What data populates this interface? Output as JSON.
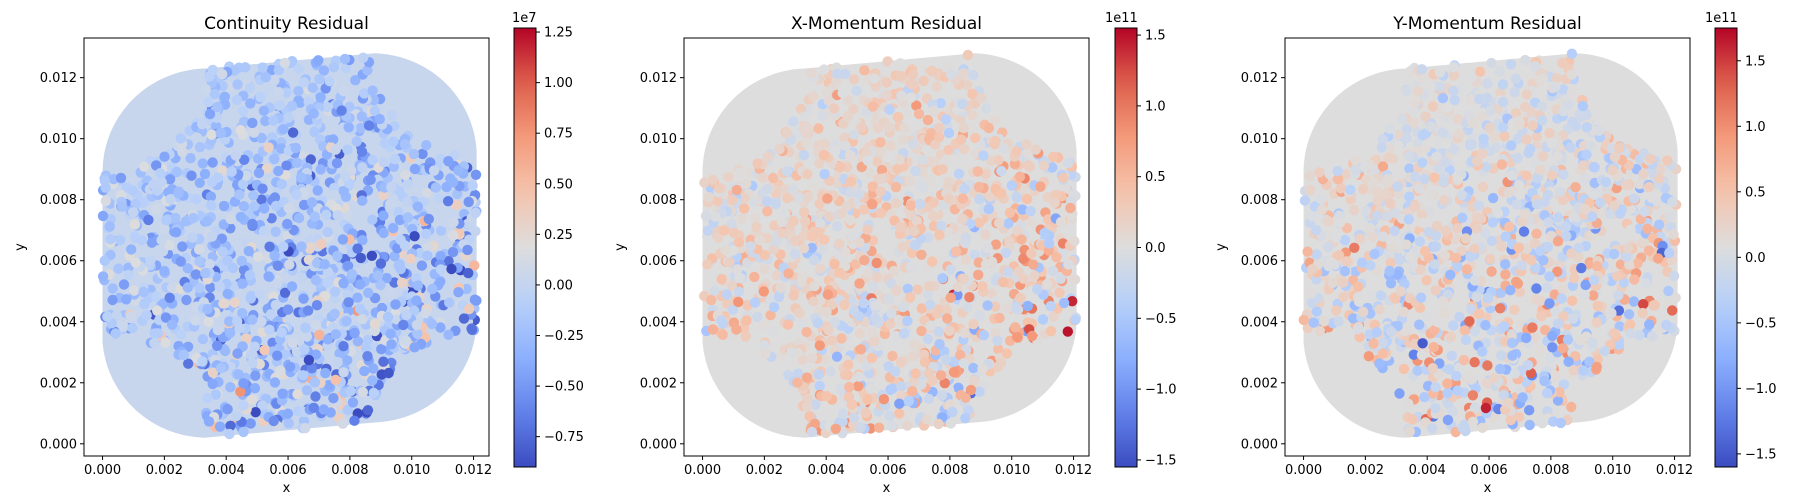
{
  "chart_data": [
    {
      "type": "scatter",
      "title": "Continuity Residual",
      "xlabel": "x",
      "ylabel": "y",
      "xlim": [
        -0.0006,
        0.0125
      ],
      "ylim": [
        -0.0004,
        0.0133
      ],
      "xticks": [
        "0.000",
        "0.002",
        "0.004",
        "0.006",
        "0.008",
        "0.010",
        "0.012"
      ],
      "yticks": [
        "0.000",
        "0.002",
        "0.004",
        "0.006",
        "0.008",
        "0.010",
        "0.012"
      ],
      "colormap": "coolwarm",
      "colorbar": {
        "range": [
          -9000000.0,
          12700000.0
        ],
        "offset_label": "1e7",
        "ticks": [
          -0.75,
          -0.5,
          -0.25,
          0.0,
          0.25,
          0.5,
          0.75,
          1.0,
          1.25
        ],
        "tick_labels": [
          "−0.75",
          "−0.50",
          "−0.25",
          "0.00",
          "0.25",
          "0.50",
          "0.75",
          "1.00",
          "1.25"
        ],
        "tick_scale": 10000000.0
      },
      "grid": false,
      "seed": 7
    },
    {
      "type": "scatter",
      "title": "X-Momentum Residual",
      "xlabel": "x",
      "ylabel": "y",
      "xlim": [
        -0.0006,
        0.0125
      ],
      "ylim": [
        -0.0004,
        0.0133
      ],
      "xticks": [
        "0.000",
        "0.002",
        "0.004",
        "0.006",
        "0.008",
        "0.010",
        "0.012"
      ],
      "yticks": [
        "0.000",
        "0.002",
        "0.004",
        "0.006",
        "0.008",
        "0.010",
        "0.012"
      ],
      "colormap": "coolwarm",
      "colorbar": {
        "range": [
          -155000000000.0,
          155000000000.0
        ],
        "offset_label": "1e11",
        "ticks": [
          -1.5,
          -1.0,
          -0.5,
          0.0,
          0.5,
          1.0,
          1.5
        ],
        "tick_labels": [
          "−1.5",
          "−1.0",
          "−0.5",
          "0.0",
          "0.5",
          "1.0",
          "1.5"
        ],
        "tick_scale": 100000000000.0
      },
      "grid": false,
      "seed": 13
    },
    {
      "type": "scatter",
      "title": "Y-Momentum Residual",
      "xlabel": "x",
      "ylabel": "y",
      "xlim": [
        -0.0006,
        0.0125
      ],
      "ylim": [
        -0.0004,
        0.0133
      ],
      "xticks": [
        "0.000",
        "0.002",
        "0.004",
        "0.006",
        "0.008",
        "0.010",
        "0.012"
      ],
      "yticks": [
        "0.000",
        "0.002",
        "0.004",
        "0.006",
        "0.008",
        "0.010",
        "0.012"
      ],
      "colormap": "coolwarm",
      "colorbar": {
        "range": [
          -160000000000.0,
          175000000000.0
        ],
        "offset_label": "1e11",
        "ticks": [
          -1.5,
          -1.0,
          -0.5,
          0.0,
          0.5,
          1.0,
          1.5
        ],
        "tick_labels": [
          "−1.5",
          "−1.0",
          "−0.5",
          "0.0",
          "0.5",
          "1.0",
          "1.5"
        ],
        "tick_scale": 100000000000.0
      },
      "grid": false,
      "seed": 29
    }
  ]
}
